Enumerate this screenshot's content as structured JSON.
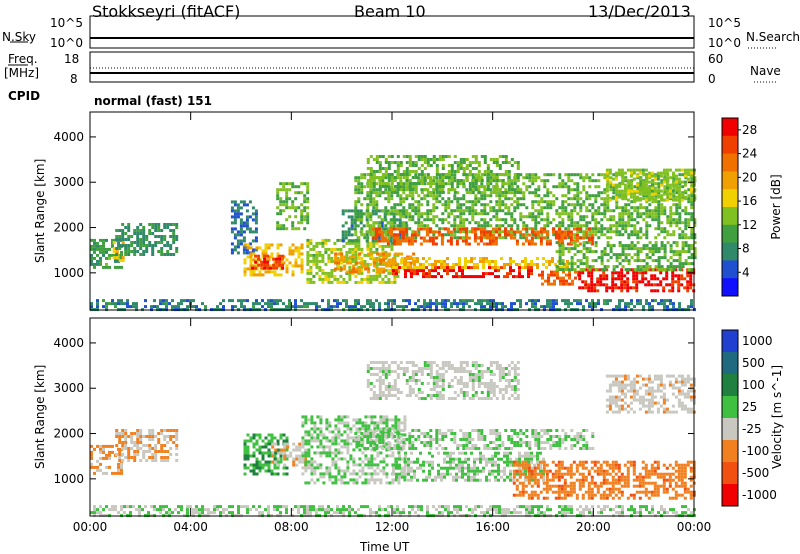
{
  "header": {
    "station": "Stokkseyri (fitACF)",
    "beam": "Beam 10",
    "date": "13/Dec/2013"
  },
  "mini_panels": {
    "nsky_label": "N.Sky",
    "nsky_top": "10^5",
    "nsky_bottom": "10^0",
    "nsearch_label": "N.Search",
    "nsearch_top": "10^5",
    "nsearch_bottom": "10^0",
    "freq_label": "Freq.",
    "freq_unit": "[MHz]",
    "freq_top": "18",
    "freq_bottom": "8",
    "nave_label": "Nave",
    "nave_top": "60",
    "nave_bottom": "0",
    "cpid_label": "CPID",
    "cpid_value": "normal (fast) 151"
  },
  "chart_data": [
    {
      "type": "heatmap",
      "title": "",
      "xlabel": "",
      "ylabel": "Slant Range [km]",
      "x_ticks": [
        "00:00",
        "04:00",
        "08:00",
        "12:00",
        "16:00",
        "20:00",
        "00:00"
      ],
      "x_range_hours": [
        0,
        24
      ],
      "y_ticks": [
        1000,
        2000,
        3000,
        4000
      ],
      "ylim": [
        180,
        4550
      ],
      "colorbar": {
        "label": "Power [dB]",
        "ticks": [
          4,
          8,
          12,
          16,
          20,
          24,
          28
        ],
        "range": [
          0,
          30
        ],
        "colors": [
          "#1010ff",
          "#2050d0",
          "#308a6a",
          "#40a040",
          "#80c020",
          "#f0d000",
          "#f0a000",
          "#f07000",
          "#f04000",
          "#f00000"
        ]
      },
      "regions": [
        {
          "t0": 0.0,
          "t1": 1.2,
          "r0": 1150,
          "r1": 1750,
          "value": 10
        },
        {
          "t0": 0.9,
          "t1": 1.3,
          "r0": 1300,
          "r1": 1700,
          "value": 18
        },
        {
          "t0": 1.0,
          "t1": 3.5,
          "r0": 1400,
          "r1": 2100,
          "value": 9
        },
        {
          "t0": 0.0,
          "t1": 24.0,
          "r0": 180,
          "r1": 420,
          "value": 7
        },
        {
          "t0": 5.6,
          "t1": 6.6,
          "r0": 1450,
          "r1": 2600,
          "value": 6
        },
        {
          "t0": 6.1,
          "t1": 8.4,
          "r0": 950,
          "r1": 1650,
          "value": 18
        },
        {
          "t0": 6.4,
          "t1": 7.6,
          "r0": 1100,
          "r1": 1400,
          "value": 26
        },
        {
          "t0": 7.4,
          "t1": 8.6,
          "r0": 2000,
          "r1": 3000,
          "value": 12
        },
        {
          "t0": 8.6,
          "t1": 12.2,
          "r0": 800,
          "r1": 1750,
          "value": 14
        },
        {
          "t0": 9.7,
          "t1": 12.8,
          "r0": 1050,
          "r1": 1450,
          "value": 20
        },
        {
          "t0": 10.0,
          "t1": 12.6,
          "r0": 1700,
          "r1": 2400,
          "value": 8
        },
        {
          "t0": 10.5,
          "t1": 24.0,
          "r0": 1800,
          "r1": 3200,
          "value": 12
        },
        {
          "t0": 11.2,
          "t1": 20.0,
          "r0": 1650,
          "r1": 2000,
          "value": 24
        },
        {
          "t0": 12.0,
          "t1": 17.6,
          "r0": 950,
          "r1": 1150,
          "value": 28
        },
        {
          "t0": 12.0,
          "t1": 19.0,
          "r0": 1100,
          "r1": 1350,
          "value": 18
        },
        {
          "t0": 17.8,
          "t1": 19.4,
          "r0": 750,
          "r1": 1050,
          "value": 24
        },
        {
          "t0": 19.4,
          "t1": 24.0,
          "r0": 600,
          "r1": 1100,
          "value": 28
        },
        {
          "t0": 18.5,
          "t1": 24.0,
          "r0": 1050,
          "r1": 1700,
          "value": 12
        },
        {
          "t0": 20.5,
          "t1": 24.0,
          "r0": 2600,
          "r1": 3300,
          "value": 14
        },
        {
          "t0": 11.0,
          "t1": 17.0,
          "r0": 2800,
          "r1": 3600,
          "value": 12
        }
      ]
    },
    {
      "type": "heatmap",
      "title": "",
      "xlabel": "Time UT",
      "ylabel": "Slant Range [km]",
      "x_ticks": [
        "00:00",
        "04:00",
        "08:00",
        "12:00",
        "16:00",
        "20:00",
        "00:00"
      ],
      "x_range_hours": [
        0,
        24
      ],
      "y_ticks": [
        1000,
        2000,
        3000,
        4000
      ],
      "ylim": [
        180,
        4550
      ],
      "colorbar": {
        "label": "Velocity [m s^-1]",
        "tick_labels": [
          "1000",
          "500",
          "100",
          "25",
          "-25",
          "-100",
          "-500",
          "-1000"
        ],
        "range": [
          -1000,
          1000
        ],
        "colors": [
          "#2040d0",
          "#206a80",
          "#208040",
          "#40c040",
          "#c8c8c0",
          "#f08020",
          "#f05010",
          "#f00000"
        ]
      },
      "regions": [
        {
          "t0": 0.0,
          "t1": 1.2,
          "r0": 1150,
          "r1": 1750,
          "value": -300
        },
        {
          "t0": 1.0,
          "t1": 3.5,
          "r0": 1400,
          "r1": 2100,
          "value": -250
        },
        {
          "t0": 0.0,
          "t1": 24.0,
          "r0": 180,
          "r1": 420,
          "value": 0
        },
        {
          "t0": 6.1,
          "t1": 7.8,
          "r0": 1100,
          "r1": 2000,
          "value": 200
        },
        {
          "t0": 7.2,
          "t1": 8.6,
          "r0": 1300,
          "r1": 1800,
          "value": -200
        },
        {
          "t0": 8.4,
          "t1": 12.5,
          "r0": 900,
          "r1": 2400,
          "value": 0
        },
        {
          "t0": 10.5,
          "t1": 20.0,
          "r0": 1650,
          "r1": 2100,
          "value": 0
        },
        {
          "t0": 12.0,
          "t1": 18.0,
          "r0": 1000,
          "r1": 1600,
          "value": 0
        },
        {
          "t0": 16.8,
          "t1": 24.0,
          "r0": 600,
          "r1": 1400,
          "value": -400
        },
        {
          "t0": 20.5,
          "t1": 24.0,
          "r0": 2500,
          "r1": 3300,
          "value": -150
        },
        {
          "t0": 11.0,
          "t1": 17.0,
          "r0": 2800,
          "r1": 3600,
          "value": -100
        }
      ]
    }
  ]
}
